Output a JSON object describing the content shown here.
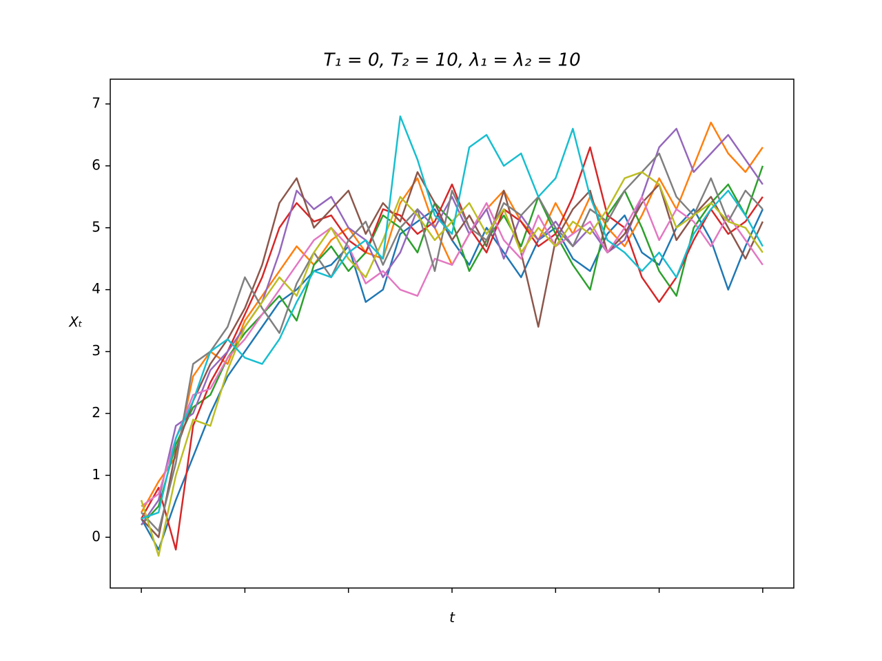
{
  "chart_data": {
    "type": "line",
    "title": "T₁ = 0, T₂ = 10, λ₁ = λ₂ = 10",
    "x_label": "t",
    "y_label": "Xₜ",
    "x": [
      0,
      1,
      2,
      3,
      4,
      5,
      6,
      7,
      8,
      9,
      10,
      11,
      12,
      13,
      14,
      15,
      16,
      17,
      18,
      19,
      20,
      21,
      22,
      23,
      24,
      25,
      26,
      27,
      28,
      29,
      30,
      31,
      32,
      33,
      34,
      35,
      36
    ],
    "xlim": [
      -1.8,
      37.8
    ],
    "xticks": [
      0,
      6,
      12,
      18,
      24,
      30,
      36
    ],
    "ylim": [
      -0.82,
      7.4
    ],
    "yticks": [
      0,
      1,
      2,
      3,
      4,
      5,
      6,
      7
    ],
    "series": [
      {
        "color": "#1f77b4",
        "values": [
          0.3,
          -0.2,
          0.6,
          1.3,
          2.0,
          2.6,
          3.0,
          3.4,
          3.8,
          4.0,
          4.3,
          4.4,
          4.7,
          3.8,
          4.0,
          4.9,
          5.1,
          5.3,
          4.8,
          4.4,
          5.0,
          4.6,
          4.2,
          4.8,
          5.0,
          4.5,
          4.3,
          4.9,
          5.2,
          4.6,
          4.4,
          5.0,
          5.3,
          4.8,
          4.0,
          4.7,
          5.3
        ]
      },
      {
        "color": "#ff7f0e",
        "values": [
          0.4,
          0.9,
          1.3,
          2.6,
          3.0,
          2.8,
          3.5,
          3.9,
          4.3,
          4.7,
          4.4,
          4.8,
          5.0,
          4.6,
          4.5,
          5.4,
          5.8,
          5.0,
          4.4,
          4.9,
          5.3,
          5.6,
          5.1,
          4.8,
          5.4,
          4.9,
          5.5,
          5.0,
          4.7,
          5.2,
          5.8,
          5.3,
          6.0,
          6.7,
          6.2,
          5.9,
          6.3
        ]
      },
      {
        "color": "#2ca02c",
        "values": [
          0.2,
          0.5,
          1.5,
          2.1,
          2.3,
          2.9,
          3.3,
          3.6,
          3.9,
          3.5,
          4.4,
          4.7,
          4.3,
          4.6,
          5.2,
          5.0,
          4.6,
          5.4,
          5.1,
          4.3,
          4.8,
          5.2,
          4.7,
          5.5,
          4.9,
          4.4,
          4.0,
          5.2,
          5.6,
          5.0,
          4.3,
          3.9,
          5.0,
          5.4,
          5.7,
          5.2,
          6.0
        ]
      },
      {
        "color": "#d62728",
        "values": [
          0.3,
          0.8,
          -0.2,
          1.8,
          2.5,
          3.0,
          3.6,
          4.2,
          5.0,
          5.4,
          5.1,
          5.2,
          4.8,
          4.6,
          5.3,
          5.2,
          4.9,
          5.1,
          5.7,
          5.0,
          4.6,
          5.3,
          5.1,
          4.7,
          4.9,
          5.5,
          6.3,
          5.2,
          5.0,
          4.2,
          3.8,
          4.2,
          4.8,
          5.3,
          4.9,
          5.1,
          5.5
        ]
      },
      {
        "color": "#9467bd",
        "values": [
          0.2,
          0.6,
          1.8,
          2.0,
          2.7,
          3.0,
          3.4,
          3.8,
          4.6,
          5.6,
          5.3,
          5.5,
          5.0,
          4.8,
          4.2,
          4.6,
          5.3,
          5.0,
          5.5,
          4.9,
          5.3,
          4.5,
          5.2,
          4.8,
          5.1,
          4.7,
          5.0,
          4.6,
          4.8,
          5.5,
          6.3,
          6.6,
          5.9,
          6.2,
          6.5,
          6.1,
          5.7
        ]
      },
      {
        "color": "#8c564b",
        "values": [
          0.3,
          0.0,
          1.4,
          2.2,
          2.8,
          3.2,
          3.7,
          4.4,
          5.4,
          5.8,
          5.0,
          5.3,
          5.6,
          4.9,
          5.4,
          5.1,
          5.9,
          5.4,
          4.8,
          5.2,
          4.7,
          5.6,
          4.6,
          3.4,
          4.8,
          5.3,
          5.6,
          4.6,
          4.9,
          5.4,
          5.7,
          4.8,
          5.2,
          5.5,
          5.0,
          4.5,
          5.1
        ]
      },
      {
        "color": "#e377c2",
        "values": [
          0.5,
          0.7,
          1.6,
          2.3,
          2.4,
          2.9,
          3.2,
          3.6,
          4.0,
          4.4,
          4.8,
          5.0,
          4.7,
          4.1,
          4.3,
          4.0,
          3.9,
          4.5,
          4.4,
          4.9,
          5.4,
          4.8,
          4.5,
          5.2,
          4.7,
          4.9,
          5.1,
          4.6,
          5.0,
          5.5,
          4.8,
          5.3,
          5.1,
          4.7,
          5.2,
          4.8,
          4.4
        ]
      },
      {
        "color": "#7f7f7f",
        "values": [
          0.4,
          0.1,
          1.2,
          2.8,
          3.0,
          3.4,
          4.2,
          3.7,
          3.3,
          4.1,
          4.6,
          4.2,
          4.8,
          5.1,
          4.4,
          5.0,
          5.3,
          4.3,
          5.6,
          5.0,
          4.8,
          5.4,
          5.2,
          5.5,
          5.0,
          4.7,
          5.3,
          5.1,
          5.6,
          5.9,
          6.2,
          5.5,
          5.2,
          5.8,
          5.1,
          5.6,
          5.3
        ]
      },
      {
        "color": "#bcbd22",
        "values": [
          0.6,
          -0.3,
          1.0,
          1.9,
          1.8,
          2.7,
          3.4,
          3.8,
          4.2,
          3.9,
          4.6,
          5.0,
          4.5,
          4.2,
          4.8,
          5.5,
          5.2,
          4.8,
          5.1,
          5.4,
          4.9,
          5.3,
          4.6,
          5.0,
          4.7,
          5.1,
          4.9,
          5.3,
          5.8,
          5.9,
          5.7,
          5.0,
          5.2,
          5.4,
          5.1,
          5.0,
          4.6
        ]
      },
      {
        "color": "#17becf",
        "values": [
          0.3,
          0.4,
          1.6,
          2.2,
          3.0,
          3.2,
          2.9,
          2.8,
          3.2,
          3.8,
          4.3,
          4.2,
          4.6,
          4.8,
          4.5,
          6.8,
          6.1,
          5.2,
          4.9,
          6.3,
          6.5,
          6.0,
          6.2,
          5.5,
          5.8,
          6.6,
          5.5,
          4.8,
          4.6,
          4.3,
          4.6,
          4.2,
          4.9,
          5.3,
          5.6,
          5.2,
          4.7
        ]
      }
    ]
  }
}
